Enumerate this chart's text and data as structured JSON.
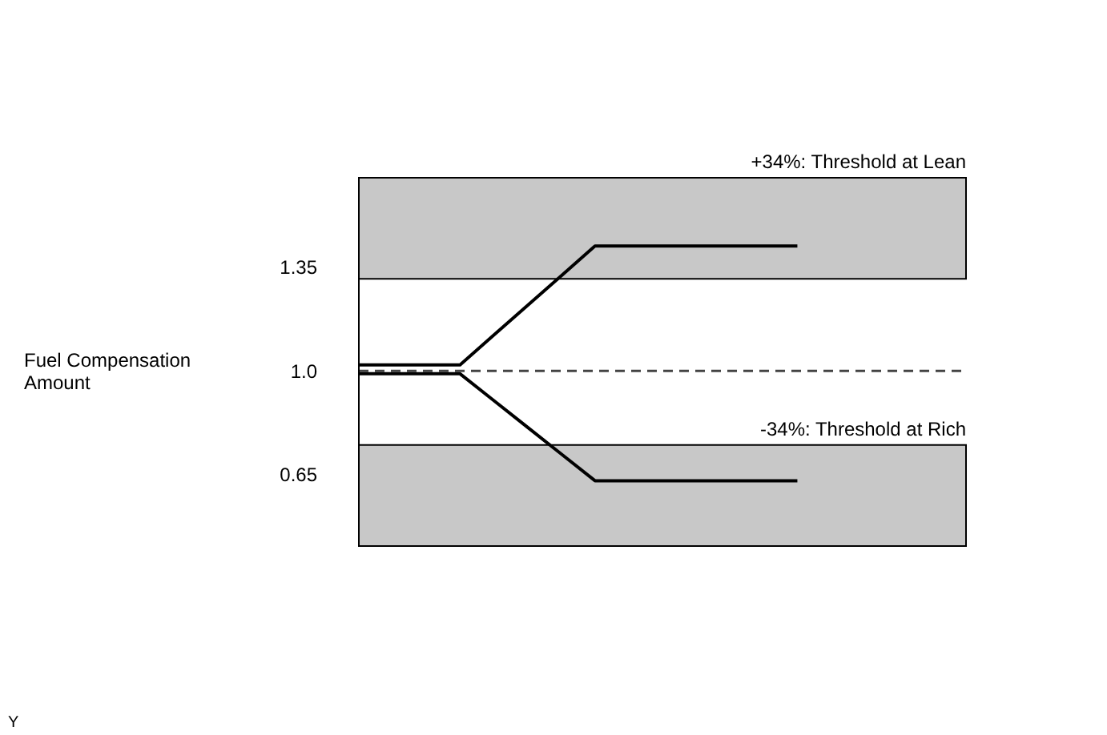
{
  "chart_data": {
    "type": "line",
    "ylabel": "Fuel Compensation Amount",
    "categories": [
      null,
      null,
      null,
      null,
      null,
      null,
      null,
      null,
      null,
      null,
      null,
      null,
      null,
      null,
      null,
      null,
      null,
      null,
      null
    ],
    "ylim": [
      0.41,
      1.65
    ],
    "yticks": [
      0.65,
      {
        "value": 1,
        "label": "1.0"
      },
      1.35
    ],
    "tick_labels": "y",
    "marker": "none",
    "line_style": "solid",
    "series": [
      {
        "color": "#000000",
        "values": [
          1.02,
          1.02,
          1.02,
          1.02,
          1.12,
          1.22,
          1.32,
          1.42,
          1.42,
          1.42,
          1.42,
          1.42,
          1.42,
          1.42,
          null,
          null,
          null,
          null,
          null
        ]
      },
      {
        "color": "#000000",
        "values": [
          0.99,
          0.99,
          0.99,
          0.99,
          0.9,
          0.81,
          0.72,
          0.63,
          0.63,
          0.63,
          0.63,
          0.63,
          0.63,
          0.63,
          null,
          null,
          null,
          null,
          null
        ]
      }
    ],
    "ref_lines": [
      {
        "axis": "y",
        "value": 1,
        "color": "#444444",
        "line_style": "dashed"
      }
    ],
    "bands": [
      {
        "axis": "y",
        "from": 1.31,
        "to": 1.65,
        "label": "+34%: Threshold at Lean",
        "color": "#c8c8c8"
      },
      {
        "axis": "y",
        "from": 0.41,
        "to": 0.75,
        "label": "-34%: Threshold at Rich",
        "color": "#c8c8c8"
      }
    ],
    "annotations": [
      "Y"
    ]
  }
}
